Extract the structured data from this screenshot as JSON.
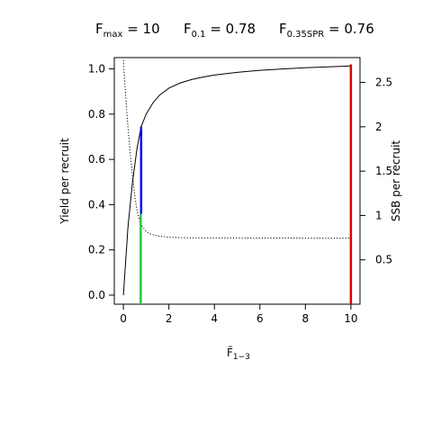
{
  "chart_data": {
    "type": "line",
    "title_parts": {
      "fmax": {
        "main": "F",
        "sub": "max",
        "rest": " = 10"
      },
      "f01": {
        "main": "F",
        "sub": "0.1",
        "rest": " = 0.78"
      },
      "fspr": {
        "main": "F",
        "sub": "0.35SPR",
        "rest": " = 0.76"
      }
    },
    "xlabel": {
      "main": "F̄",
      "sub": "1−3"
    },
    "ylabel_left": "Yield per recruit",
    "ylabel_right": "SSB per recruit",
    "xlim": [
      -0.4,
      10.4
    ],
    "ylim_left": [
      -0.04,
      1.05
    ],
    "ylim_right": [
      0,
      2.78
    ],
    "x_ticks": [
      0,
      2,
      4,
      6,
      8,
      10
    ],
    "x_tick_labels": [
      "0",
      "2",
      "4",
      "6",
      "8",
      "10"
    ],
    "y_left_ticks": [
      0.0,
      0.2,
      0.4,
      0.6,
      0.8,
      1.0
    ],
    "y_left_tick_labels": [
      "0.0",
      "0.2",
      "0.4",
      "0.6",
      "0.8",
      "1.0"
    ],
    "y_right_ticks": [
      0.5,
      1,
      1.5,
      2,
      2.5
    ],
    "y_right_tick_labels": [
      "0.5",
      "1",
      "1.5",
      "2",
      "2.5"
    ],
    "grid": false,
    "series": [
      {
        "style": "solid",
        "axis": "left",
        "color": "#000000",
        "x": [
          0,
          0.2,
          0.4,
          0.6,
          0.78,
          1.0,
          1.3,
          1.6,
          2.0,
          2.5,
          3.0,
          3.5,
          4.0,
          5.0,
          6.0,
          7.0,
          8.0,
          9.0,
          10.0
        ],
        "y": [
          0.0,
          0.3,
          0.5,
          0.65,
          0.745,
          0.8,
          0.85,
          0.885,
          0.915,
          0.938,
          0.953,
          0.964,
          0.973,
          0.985,
          0.994,
          1.0,
          1.005,
          1.009,
          1.013
        ]
      },
      {
        "style": "dotted",
        "axis": "right",
        "color": "#000000",
        "x": [
          0,
          0.1,
          0.2,
          0.3,
          0.4,
          0.5,
          0.6,
          0.76,
          1.0,
          1.2,
          1.5,
          2.0,
          2.5,
          3.0,
          4.0,
          6.0,
          8.0,
          10.0
        ],
        "y": [
          2.75,
          2.35,
          2.0,
          1.7,
          1.45,
          1.22,
          1.05,
          0.9,
          0.82,
          0.79,
          0.77,
          0.755,
          0.75,
          0.748,
          0.747,
          0.746,
          0.745,
          0.745
        ]
      }
    ],
    "reference_lines": [
      {
        "name": "F0.1 yield",
        "axis": "left",
        "x": 0.78,
        "y_from": 0.36,
        "y_to": 0.745,
        "color": "#0000ff"
      },
      {
        "name": "F0.35SPR",
        "axis": "left",
        "x": 0.76,
        "y_from": -0.04,
        "y_to": 0.36,
        "color": "#22cc44"
      },
      {
        "name": "Fmax",
        "axis": "left",
        "x": 10.0,
        "y_from": -0.04,
        "y_to": 1.02,
        "color": "#dd0000"
      }
    ]
  }
}
